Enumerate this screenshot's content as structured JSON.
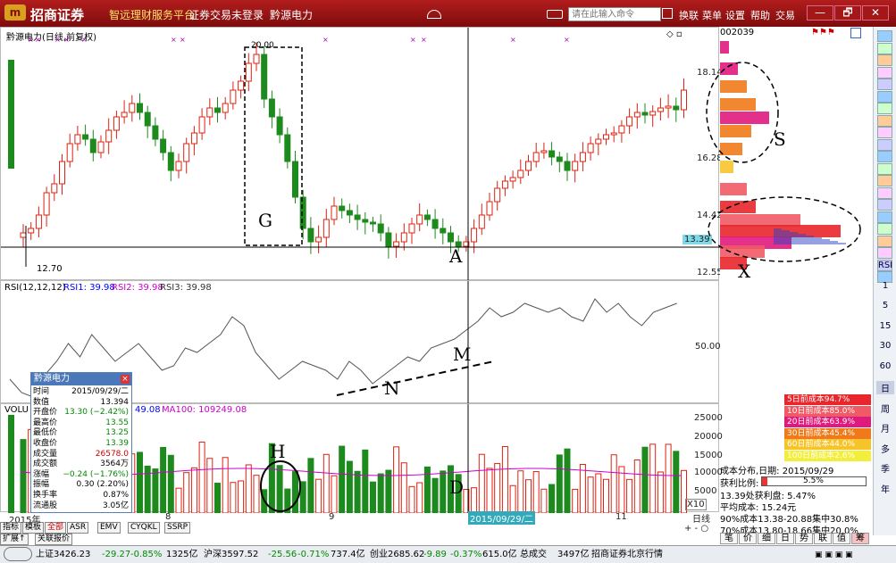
{
  "app": {
    "brand": "招商证券",
    "subtitle": "智远理财服务平台",
    "login_status": "证券交易未登录",
    "stock_title": "黔源电力",
    "cmd_placeholder": "请在此输入命令",
    "toolbar": [
      "换联",
      "菜单",
      "设置",
      "帮助",
      "交易"
    ],
    "window_buttons": [
      "—",
      "🗗",
      "✕"
    ]
  },
  "chart": {
    "header": "黔源电力(日线,前复权)",
    "high_label": "20.00",
    "low_label": "12.70",
    "price_ticks": [
      "18.14",
      "16.28",
      "14.42",
      "12.55"
    ],
    "current_price_tag": "13.39"
  },
  "rsi": {
    "label": "RSI(12,12,12)",
    "rsi1": "RSI1: 39.98",
    "rsi2": "RSI2: 39.98",
    "rsi3": "RSI3: 39.98",
    "tick": "50.00"
  },
  "volume": {
    "label": "VOLU",
    "ma_tail": "49.08",
    "ma100": "MA100: 109249.08",
    "ticks": [
      "25000",
      "20000",
      "15000",
      "10000",
      "5000",
      "X10"
    ]
  },
  "xaxis": {
    "year": "2015年",
    "m8": "8",
    "m9": "9",
    "m11": "11",
    "cursor_date": "2015/09/29/二",
    "period": "日线"
  },
  "popup": {
    "title": "黔源电力",
    "rows": [
      {
        "k": "时间",
        "v": "2015/09/29/二",
        "c": "#000"
      },
      {
        "k": "数值",
        "v": "13.394",
        "c": "#000"
      },
      {
        "k": "开盘价",
        "v": "13.30 (−2.42%)",
        "c": "#080"
      },
      {
        "k": "最高价",
        "v": "13.55",
        "c": "#080"
      },
      {
        "k": "最低价",
        "v": "13.25",
        "c": "#080"
      },
      {
        "k": "收盘价",
        "v": "13.39",
        "c": "#080"
      },
      {
        "k": "成交量",
        "v": "26578.0",
        "c": "#c00"
      },
      {
        "k": "成交额",
        "v": "3564万",
        "c": "#000"
      },
      {
        "k": "涨幅",
        "v": "−0.24 (−1.76%)",
        "c": "#080"
      },
      {
        "k": "振幅",
        "v": "0.30 (2.20%)",
        "c": "#000"
      },
      {
        "k": "换手率",
        "v": "0.87%",
        "c": "#000"
      },
      {
        "k": "流通股",
        "v": "3.05亿",
        "c": "#000"
      }
    ]
  },
  "profile": {
    "code": "002039"
  },
  "cost_legend": [
    {
      "text": "5日前成本94.7%",
      "color": "#e8262c"
    },
    {
      "text": "10日前成本85.0%",
      "color": "#ef5a65"
    },
    {
      "text": "20日前成本63.9%",
      "color": "#e0197d"
    },
    {
      "text": "30日前成本45.4%",
      "color": "#f07a1a"
    },
    {
      "text": "60日前成本44.0%",
      "color": "#f6c42a"
    },
    {
      "text": "100日前成本2.6%",
      "color": "#f2ee3a"
    }
  ],
  "cost_stats": {
    "dist": "成本分布,日期: 2015/09/29",
    "profit_label": "获利比例:",
    "profit_val": "5.5%",
    "p1339": "13.39处获利盘: 5.47%",
    "avg": "平均成本: 15.24元",
    "c90": "90%成本13.38-20.88集中30.8%",
    "c70": "70%成本13.80-18.66集中20.0%"
  },
  "bottom_tabs": [
    "指标",
    "模板",
    "全部",
    "ASR",
    "EMV",
    "CYQKL",
    "SSRP"
  ],
  "bottom_tabs2": [
    "扩展↑",
    "关联报价"
  ],
  "right_small_btns": [
    "笔",
    "价",
    "细",
    "日",
    "势",
    "联",
    "值",
    "筹"
  ],
  "status": {
    "sh": "上证3426.23",
    "sh_ch": "-29.27",
    "sh_pct": "-0.85%",
    "sh_amt": "1325亿",
    "sz": "沪深3597.52",
    "sz_ch": "-25.56",
    "sz_pct": "-0.71%",
    "sz_amt": "737.4亿",
    "cy": "创业2685.62",
    "cy_ch": "-9.89",
    "cy_pct": "-0.37%",
    "cy_amt": "615.0亿",
    "total": "总成交",
    "total_v": "3497亿",
    "server": "招商证券北京行情"
  },
  "annotations": {
    "G": "G",
    "A": "A",
    "S": "S",
    "X": "X",
    "N": "N",
    "M": "M",
    "H": "H",
    "D": "D"
  },
  "right_toolbar_text": [
    "RSI",
    "1",
    "5",
    "15",
    "30",
    "60",
    "日",
    "周",
    "月",
    "多",
    "季",
    "年"
  ]
}
